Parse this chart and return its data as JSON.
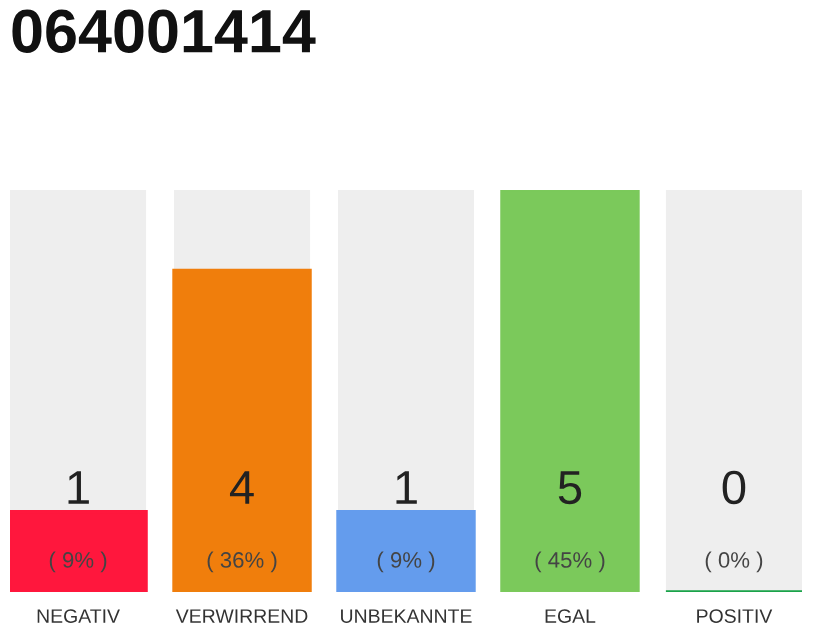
{
  "chart_data": {
    "type": "bar",
    "title": "064001414",
    "categories": [
      "NEGATIV",
      "VERWIRREND",
      "UNBEKANNTE",
      "EGAL",
      "POSITIV"
    ],
    "values": [
      1,
      4,
      1,
      5,
      0
    ],
    "colors": [
      "#ff173d",
      "#f07e0c",
      "#649ced",
      "#7bc95b",
      "#1aa34a"
    ],
    "ylim": [
      0,
      5
    ],
    "data_labels": true,
    "annotations": [
      {
        "text": "( 9% )",
        "x": "NEGATIV",
        "y": 0
      },
      {
        "text": "( 36% )",
        "x": "VERWIRREND",
        "y": 0
      },
      {
        "text": "( 9% )",
        "x": "UNBEKANNTE",
        "y": 0
      },
      {
        "text": "( 45% )",
        "x": "EGAL",
        "y": 0
      },
      {
        "text": "( 0% )",
        "x": "POSITIV",
        "y": 0
      }
    ],
    "tick_labels": "x",
    "grid": false
  }
}
